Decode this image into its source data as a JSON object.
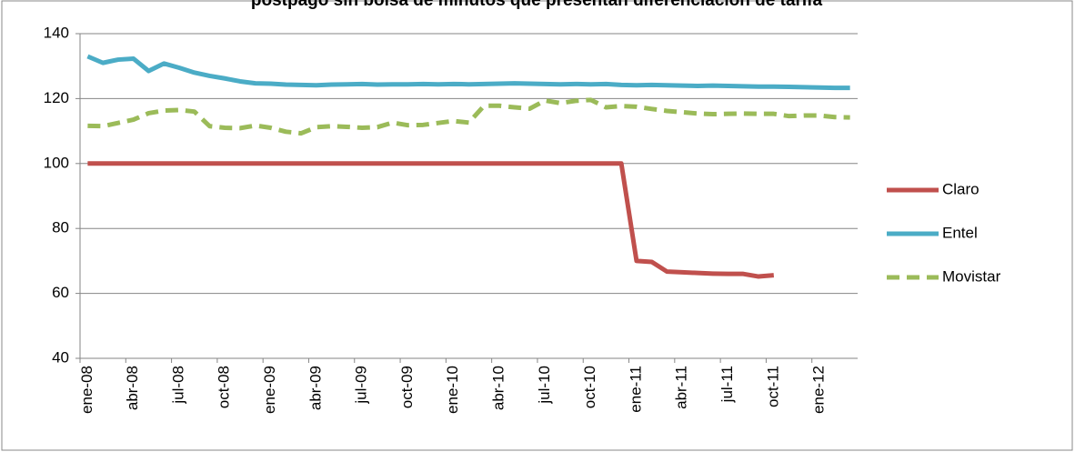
{
  "chart_data": {
    "type": "line",
    "title": "postpago sin bolsa de minutos que presentan diferenciación de tarifa",
    "categories": [
      "ene-08",
      null,
      null,
      "abr-08",
      null,
      null,
      "jul-08",
      null,
      null,
      "oct-08",
      null,
      null,
      "ene-09",
      null,
      null,
      "abr-09",
      null,
      null,
      "jul-09",
      null,
      null,
      "oct-09",
      null,
      null,
      "ene-10",
      null,
      null,
      "abr-10",
      null,
      null,
      "jul-10",
      null,
      null,
      "oct-10",
      null,
      null,
      "ene-11",
      null,
      null,
      "abr-11",
      null,
      null,
      "jul-11",
      null,
      null,
      "oct-11",
      null,
      null,
      "ene-12",
      null,
      null
    ],
    "series": [
      {
        "name": "Claro",
        "color": "#c0504d",
        "dashed": false,
        "values": [
          100,
          100,
          100,
          100,
          100,
          100,
          100,
          100,
          100,
          100,
          100,
          100,
          100,
          100,
          100,
          100,
          100,
          100,
          100,
          100,
          100,
          100,
          100,
          100,
          100,
          100,
          100,
          100,
          100,
          100,
          100,
          100,
          100,
          100,
          100,
          100,
          70,
          69.7,
          66.7,
          66.5,
          66.3,
          66.1,
          66,
          66,
          65.2,
          65.6,
          null,
          null,
          null,
          null,
          null
        ]
      },
      {
        "name": "Entel",
        "color": "#4bacc6",
        "dashed": false,
        "values": [
          133,
          131,
          132,
          132.3,
          128.5,
          130.8,
          129.5,
          128,
          127,
          126.2,
          125.3,
          124.7,
          124.6,
          124.3,
          124.2,
          124.1,
          124.3,
          124.4,
          124.5,
          124.3,
          124.4,
          124.4,
          124.5,
          124.4,
          124.5,
          124.4,
          124.5,
          124.6,
          124.7,
          124.6,
          124.5,
          124.4,
          124.5,
          124.4,
          124.5,
          124.2,
          124.1,
          124.2,
          124.1,
          124,
          123.9,
          124,
          123.9,
          123.8,
          123.7,
          123.7,
          123.6,
          123.5,
          123.4,
          123.3,
          123.3
        ]
      },
      {
        "name": "Movistar",
        "color": "#9bbb59",
        "dashed": true,
        "values": [
          111.6,
          111.5,
          112.5,
          113.5,
          115.5,
          116.3,
          116.5,
          116,
          111.5,
          111,
          110.9,
          111.7,
          111,
          109.8,
          109.3,
          111.2,
          111.5,
          111.3,
          111,
          111.2,
          112.6,
          111.8,
          111.9,
          112.5,
          113.1,
          112.6,
          117.8,
          117.8,
          117.3,
          116.9,
          119.4,
          118.6,
          119.3,
          119.6,
          117.3,
          117.7,
          117.5,
          116.8,
          116.2,
          115.8,
          115.4,
          115.2,
          115.3,
          115.4,
          115.3,
          115.3,
          114.6,
          114.8,
          114.8,
          114.3,
          114.2
        ]
      }
    ],
    "ylim": [
      40,
      140
    ],
    "yticks": [
      40,
      60,
      80,
      100,
      120,
      140
    ],
    "grid": true,
    "legend": "right"
  }
}
